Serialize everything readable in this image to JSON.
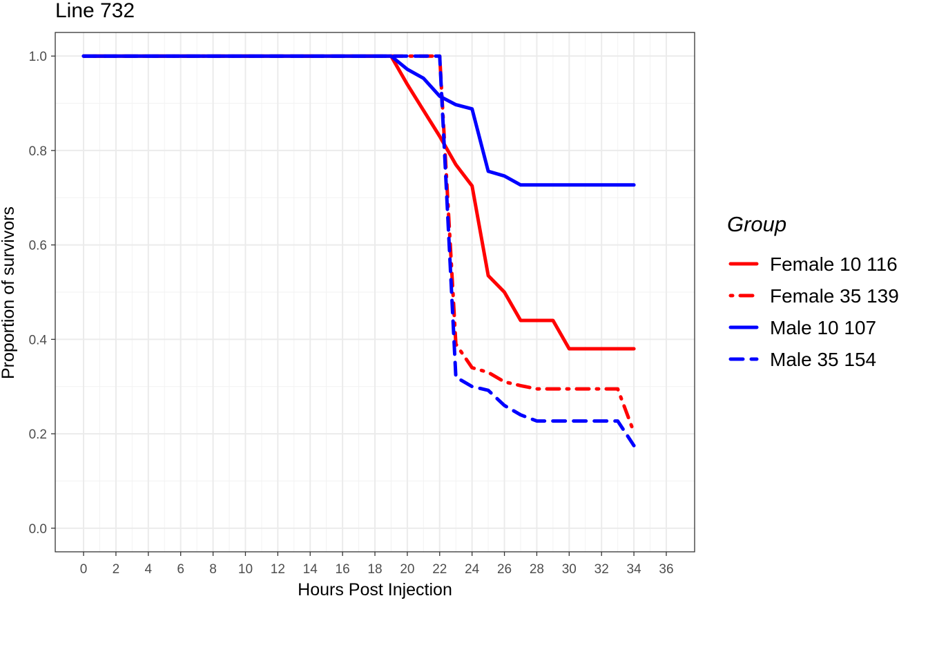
{
  "chart_data": {
    "type": "line",
    "title": "Line 732",
    "xlabel": "Hours Post Injection",
    "ylabel": "Proportion of survivors",
    "xlim": [
      -1.75,
      37.75
    ],
    "ylim": [
      -0.05,
      1.05
    ],
    "x_ticks": [
      0,
      2,
      4,
      6,
      8,
      10,
      12,
      14,
      16,
      18,
      20,
      22,
      24,
      26,
      28,
      30,
      32,
      34,
      36
    ],
    "y_ticks": [
      0.0,
      0.2,
      0.4,
      0.6,
      0.8,
      1.0
    ],
    "y_tick_labels": [
      "0.0",
      "0.2",
      "0.4",
      "0.6",
      "0.8",
      "1.0"
    ],
    "grid": true,
    "legend": {
      "title": "Group",
      "position": "right"
    },
    "series": [
      {
        "name": "Female 10 116",
        "color": "#ff0000",
        "linestyle": "solid",
        "x": [
          0,
          19,
          20,
          21,
          22,
          23,
          24,
          25,
          26,
          27,
          28,
          29,
          30,
          31,
          32,
          33,
          34
        ],
        "y": [
          1.0,
          1.0,
          0.94,
          0.885,
          0.83,
          0.77,
          0.725,
          0.535,
          0.5,
          0.44,
          0.44,
          0.44,
          0.38,
          0.38,
          0.38,
          0.38,
          0.38
        ]
      },
      {
        "name": "Female 35 139",
        "color": "#ff0000",
        "linestyle": "dashdot",
        "x": [
          0,
          22,
          23,
          24,
          25,
          26,
          27,
          28,
          29,
          30,
          31,
          32,
          33,
          34
        ],
        "y": [
          1.0,
          1.0,
          0.39,
          0.34,
          0.33,
          0.31,
          0.302,
          0.295,
          0.295,
          0.295,
          0.295,
          0.295,
          0.295,
          0.203
        ]
      },
      {
        "name": "Male 10 107",
        "color": "#0000ff",
        "linestyle": "solid",
        "x": [
          0,
          19,
          20,
          21,
          22,
          23,
          24,
          25,
          26,
          27,
          28,
          29,
          30,
          31,
          32,
          33,
          34
        ],
        "y": [
          1.0,
          1.0,
          0.972,
          0.953,
          0.915,
          0.897,
          0.888,
          0.756,
          0.746,
          0.727,
          0.727,
          0.727,
          0.727,
          0.727,
          0.727,
          0.727,
          0.727
        ]
      },
      {
        "name": "Male 35 154",
        "color": "#0000ff",
        "linestyle": "dashed",
        "x": [
          0,
          22,
          23,
          24,
          25,
          26,
          27,
          28,
          29,
          30,
          31,
          32,
          33,
          34
        ],
        "y": [
          1.0,
          1.0,
          0.32,
          0.3,
          0.292,
          0.26,
          0.24,
          0.227,
          0.227,
          0.227,
          0.227,
          0.227,
          0.227,
          0.175
        ]
      }
    ]
  }
}
